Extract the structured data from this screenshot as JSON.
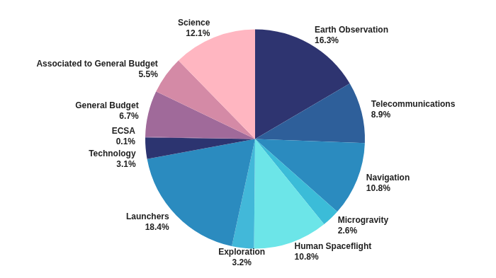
{
  "chart_data": {
    "type": "pie",
    "categories": [
      "Earth Observation",
      "Telecommunications",
      "Navigation",
      "Microgravity",
      "Human Spaceflight",
      "Exploration",
      "Launchers",
      "Technology",
      "ECSA",
      "General Budget",
      "Associated to General Budget",
      "Science"
    ],
    "values": [
      16.3,
      8.9,
      10.8,
      2.6,
      10.8,
      3.2,
      18.4,
      3.1,
      0.1,
      6.7,
      5.5,
      12.1
    ],
    "value_labels": [
      "16.3%",
      "8.9%",
      "10.8%",
      "2.6%",
      "10.8%",
      "3.2%",
      "18.4%",
      "3.1%",
      "0.1%",
      "6.7%",
      "5.5%",
      "12.1%"
    ],
    "colors": [
      "#2e3470",
      "#2e5f9a",
      "#2b8bbf",
      "#3bbcd8",
      "#6ce5e8",
      "#42b8d9",
      "#2b8bbf",
      "#2c3470",
      "#7a4a8a",
      "#a06a9a",
      "#d48aa6",
      "#ffb6c1"
    ],
    "data_labels": true
  }
}
